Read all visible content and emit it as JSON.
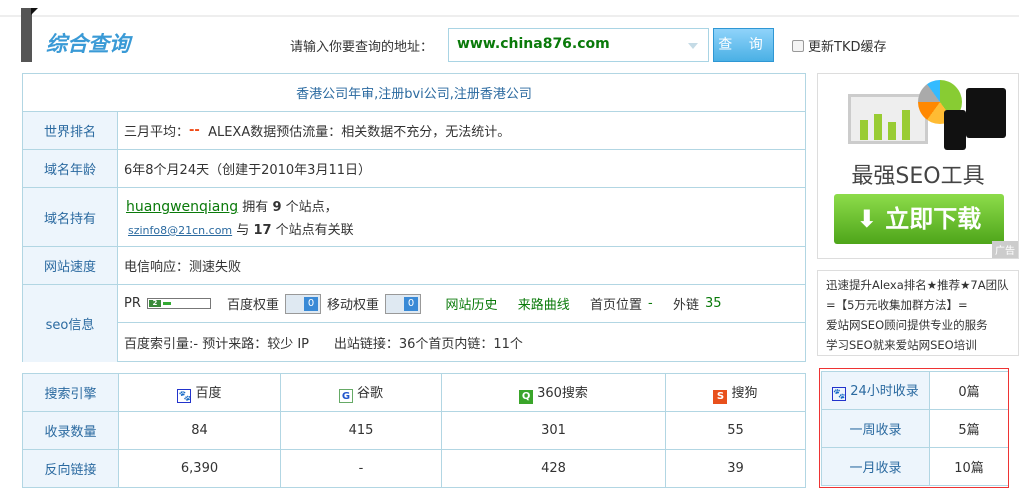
{
  "header": {
    "title": "综合查询",
    "prompt": "请输入你要查询的地址：",
    "url": "www.china876.com",
    "query_button": "查 询",
    "tkd_label": "更新TKD缓存"
  },
  "banner_link": "香港公司年审,注册bvi公司,注册香港公司",
  "rows": {
    "rank": {
      "label": "世界排名",
      "prefix": "三月平均：",
      "value": "--",
      "alexa": "ALEXA数据预估流量：相关数据不充分，无法统计。"
    },
    "age": {
      "label": "域名年龄",
      "value": "6年8个月24天（创建于2010年3月11日）"
    },
    "owner": {
      "label": "域名持有",
      "name": "huangwenqiang",
      "t1": "拥有",
      "sites": "9",
      "t2": "个站点，",
      "email": "szinfo8@21cn.com",
      "t3": "与",
      "related": "17",
      "t4": "个站点有关联"
    },
    "speed": {
      "label": "网站速度",
      "value": "电信响应：测速失败"
    },
    "seo": {
      "label": "seo信息",
      "pr_label": "PR",
      "pr_value": "2",
      "baidu_weight_label": "百度权重",
      "baidu_weight": "0",
      "mobile_weight_label": "移动权重",
      "mobile_weight": "0",
      "history": "网站历史",
      "traffic_curve": "来路曲线",
      "home_pos_label": "首页位置",
      "home_pos": "-",
      "outlinks_label": "外链",
      "outlinks": "35",
      "line2": "百度索引量:-  预计来路：较少 IP",
      "line2b": "出站链接：36个首页内链：11个"
    }
  },
  "engines": {
    "header": "搜索引擎",
    "names": [
      "百度",
      "谷歌",
      "360搜索",
      "搜狗"
    ],
    "indexed_label": "收录数量",
    "indexed": [
      "84",
      "415",
      "301",
      "55"
    ],
    "backlinks_label": "反向链接",
    "backlinks": [
      "6,390",
      "-",
      "428",
      "39"
    ]
  },
  "recent": {
    "rows": [
      {
        "label": "24小时收录",
        "value": "0篇"
      },
      {
        "label": "一周收录",
        "value": "5篇"
      },
      {
        "label": "一月收录",
        "value": "10篇"
      }
    ]
  },
  "ad": {
    "headline": "最强SEO工具",
    "button": "立即下载",
    "tag": "广告"
  },
  "ad_text": [
    "迅速提升Alexa排名★推荐★7A团队",
    "=【5万元收集加群方法】=",
    "爱站网SEO顾问提供专业的服务",
    "学习SEO就来爱站网SEO培训"
  ],
  "colors": {
    "accent": "#3a9ad6",
    "link_green": "#0a7a0a",
    "label_bg": "#edf5fc",
    "border": "#b2d6e3",
    "highlight": "#e33333"
  }
}
